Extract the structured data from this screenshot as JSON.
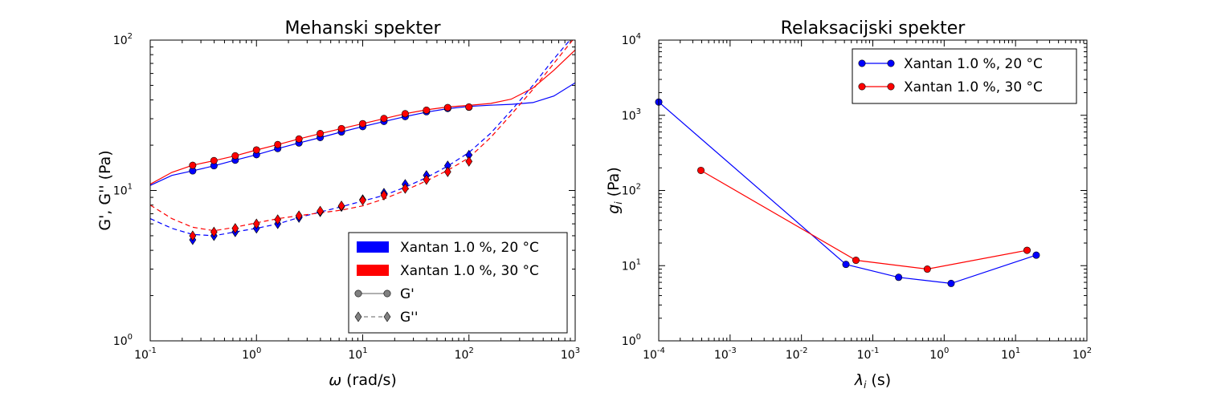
{
  "colors": {
    "series_20C": "#0000ff",
    "series_30C": "#ff0000",
    "marker_edge": "#000000",
    "legend_gray": "#808080"
  },
  "chart_data": [
    {
      "type": "line",
      "title": "Mehanski spekter",
      "xlabel": "(rad/s)",
      "xlabel_symbol": "ω",
      "ylabel": "G', G'' (Pa)",
      "xscale": "log",
      "yscale": "log",
      "xlim": [
        0.1,
        1000
      ],
      "ylim": [
        1,
        100
      ],
      "xticks": [
        {
          "value": 0.1,
          "base": "10",
          "exp": "-1"
        },
        {
          "value": 1,
          "base": "10",
          "exp": "0"
        },
        {
          "value": 10,
          "base": "10",
          "exp": "1"
        },
        {
          "value": 100,
          "base": "10",
          "exp": "2"
        },
        {
          "value": 1000,
          "base": "10",
          "exp": "3"
        }
      ],
      "yticks": [
        {
          "value": 1,
          "base": "10",
          "exp": "0"
        },
        {
          "value": 10,
          "base": "10",
          "exp": "1"
        },
        {
          "value": 100,
          "base": "10",
          "exp": "2"
        }
      ],
      "legend_position": "lower-right",
      "legend": [
        {
          "label": "Xantan 1.0 %, 20 °C",
          "kind": "patch",
          "color": "#0000ff"
        },
        {
          "label": "Xantan 1.0 %, 30 °C",
          "kind": "patch",
          "color": "#ff0000"
        },
        {
          "label": "G'",
          "kind": "circle-solid"
        },
        {
          "label": "G''",
          "kind": "diamond-dashed"
        }
      ],
      "series": [
        {
          "name": "G'",
          "group": "Xantan 1.0 %, 20 °C",
          "color": "#0000ff",
          "marker": "circle",
          "linestyle": "solid",
          "x": [
            0.251,
            0.398,
            0.631,
            1.0,
            1.585,
            2.512,
            3.981,
            6.31,
            10.0,
            15.85,
            25.12,
            39.81,
            63.1,
            100.0
          ],
          "y": [
            13.5,
            14.6,
            15.9,
            17.3,
            19.0,
            20.7,
            22.5,
            24.5,
            26.6,
            28.8,
            31.0,
            33.4,
            35.1,
            35.8
          ],
          "fit_x": [
            0.1,
            0.16,
            0.25,
            0.4,
            0.63,
            1.0,
            1.6,
            2.5,
            4.0,
            6.3,
            10.0,
            16.0,
            25.0,
            40.0,
            63.0,
            100.0,
            160.0,
            250.0,
            400.0,
            630.0,
            1000.0
          ],
          "fit_y": [
            10.8,
            12.6,
            13.5,
            14.6,
            15.9,
            17.3,
            19.0,
            20.7,
            22.5,
            24.5,
            26.6,
            28.8,
            31.0,
            33.2,
            35.0,
            36.2,
            36.9,
            37.4,
            38.4,
            42.5,
            52.0
          ]
        },
        {
          "name": "G'",
          "group": "Xantan 1.0 %, 30 °C",
          "color": "#ff0000",
          "marker": "circle",
          "linestyle": "solid",
          "x": [
            0.251,
            0.398,
            0.631,
            1.0,
            1.585,
            2.512,
            3.981,
            6.31,
            10.0,
            15.85,
            25.12,
            39.81,
            63.1,
            100.0
          ],
          "y": [
            14.7,
            15.8,
            17.0,
            18.6,
            20.2,
            22.0,
            23.9,
            25.8,
            27.8,
            30.1,
            32.4,
            34.2,
            35.6,
            35.9
          ],
          "fit_x": [
            0.1,
            0.16,
            0.25,
            0.4,
            0.63,
            1.0,
            1.6,
            2.5,
            4.0,
            6.3,
            10.0,
            16.0,
            25.0,
            40.0,
            63.0,
            100.0,
            160.0,
            250.0,
            400.0,
            630.0,
            1000.0
          ],
          "fit_y": [
            11.0,
            13.2,
            14.7,
            15.8,
            17.0,
            18.6,
            20.2,
            22.0,
            23.9,
            25.8,
            27.8,
            30.1,
            32.4,
            34.4,
            35.9,
            36.8,
            37.9,
            40.5,
            48.0,
            63.0,
            86.0
          ]
        },
        {
          "name": "G''",
          "group": "Xantan 1.0 %, 20 °C",
          "color": "#0000ff",
          "marker": "diamond",
          "linestyle": "dashed",
          "x": [
            0.251,
            0.398,
            0.631,
            1.0,
            1.585,
            2.512,
            3.981,
            6.31,
            10.0,
            15.85,
            25.12,
            39.81,
            63.1,
            100.0
          ],
          "y": [
            4.7,
            5.0,
            5.3,
            5.6,
            6.0,
            6.6,
            7.2,
            7.8,
            8.7,
            9.6,
            11.0,
            12.6,
            14.6,
            17.2
          ],
          "fit_x": [
            0.1,
            0.16,
            0.25,
            0.4,
            0.63,
            1.0,
            1.6,
            2.5,
            4.0,
            6.3,
            10.0,
            16.0,
            25.0,
            40.0,
            63.0,
            100.0,
            160.0,
            250.0,
            400.0,
            630.0,
            1000.0
          ],
          "fit_y": [
            6.5,
            5.6,
            5.1,
            5.0,
            5.3,
            5.6,
            6.0,
            6.6,
            7.2,
            7.8,
            8.5,
            9.3,
            10.5,
            12.2,
            14.5,
            17.9,
            24.0,
            34.0,
            50.0,
            75.0,
            110.0
          ]
        },
        {
          "name": "G''",
          "group": "Xantan 1.0 %, 30 °C",
          "color": "#ff0000",
          "marker": "diamond",
          "linestyle": "dashed",
          "x": [
            0.251,
            0.398,
            0.631,
            1.0,
            1.585,
            2.512,
            3.981,
            6.31,
            10.0,
            15.85,
            25.12,
            39.81,
            63.1,
            100.0
          ],
          "y": [
            5.0,
            5.3,
            5.6,
            6.0,
            6.4,
            6.8,
            7.3,
            7.9,
            8.6,
            9.3,
            10.3,
            11.8,
            13.3,
            15.6
          ],
          "fit_x": [
            0.1,
            0.16,
            0.25,
            0.4,
            0.63,
            1.0,
            1.6,
            2.5,
            4.0,
            6.3,
            10.0,
            16.0,
            25.0,
            40.0,
            63.0,
            100.0,
            160.0,
            250.0,
            400.0,
            630.0,
            1000.0
          ],
          "fit_y": [
            8.0,
            6.5,
            5.7,
            5.4,
            5.7,
            6.1,
            6.5,
            6.8,
            7.1,
            7.4,
            7.9,
            8.8,
            10.0,
            11.6,
            13.6,
            16.5,
            22.5,
            32.0,
            47.0,
            70.0,
            105.0
          ]
        }
      ]
    },
    {
      "type": "line",
      "title": "Relaksacijski spekter",
      "xlabel": "(s)",
      "xlabel_symbol": "λ",
      "xlabel_sub": "i",
      "ylabel": "(Pa)",
      "ylabel_symbol": "g",
      "ylabel_sub": "i",
      "xscale": "log",
      "yscale": "log",
      "xlim": [
        0.0001,
        100
      ],
      "ylim": [
        1,
        10000
      ],
      "xticks": [
        {
          "value": 0.0001,
          "base": "10",
          "exp": "-4"
        },
        {
          "value": 0.001,
          "base": "10",
          "exp": "-3"
        },
        {
          "value": 0.01,
          "base": "10",
          "exp": "-2"
        },
        {
          "value": 0.1,
          "base": "10",
          "exp": "-1"
        },
        {
          "value": 1,
          "base": "10",
          "exp": "0"
        },
        {
          "value": 10,
          "base": "10",
          "exp": "1"
        },
        {
          "value": 100,
          "base": "10",
          "exp": "2"
        }
      ],
      "yticks": [
        {
          "value": 1,
          "base": "10",
          "exp": "0"
        },
        {
          "value": 10,
          "base": "10",
          "exp": "1"
        },
        {
          "value": 100,
          "base": "10",
          "exp": "2"
        },
        {
          "value": 1000,
          "base": "10",
          "exp": "3"
        },
        {
          "value": 10000,
          "base": "10",
          "exp": "4"
        }
      ],
      "legend_position": "upper-right",
      "legend": [
        {
          "label": "Xantan 1.0 %, 20 °C",
          "kind": "circle-line",
          "color": "#0000ff"
        },
        {
          "label": "Xantan 1.0 %, 30 °C",
          "kind": "circle-line",
          "color": "#ff0000"
        }
      ],
      "series": [
        {
          "name": "Xantan 1.0 %, 20 °C",
          "color": "#0000ff",
          "marker": "circle",
          "linestyle": "solid",
          "x": [
            0.0001,
            0.042,
            0.23,
            1.25,
            19.5
          ],
          "y": [
            1500,
            10.4,
            7.0,
            5.8,
            13.8
          ]
        },
        {
          "name": "Xantan 1.0 %, 30 °C",
          "color": "#ff0000",
          "marker": "circle",
          "linestyle": "solid",
          "x": [
            0.00039,
            0.058,
            0.58,
            14.5
          ],
          "y": [
            185,
            11.8,
            9.0,
            16.0
          ]
        }
      ]
    }
  ]
}
